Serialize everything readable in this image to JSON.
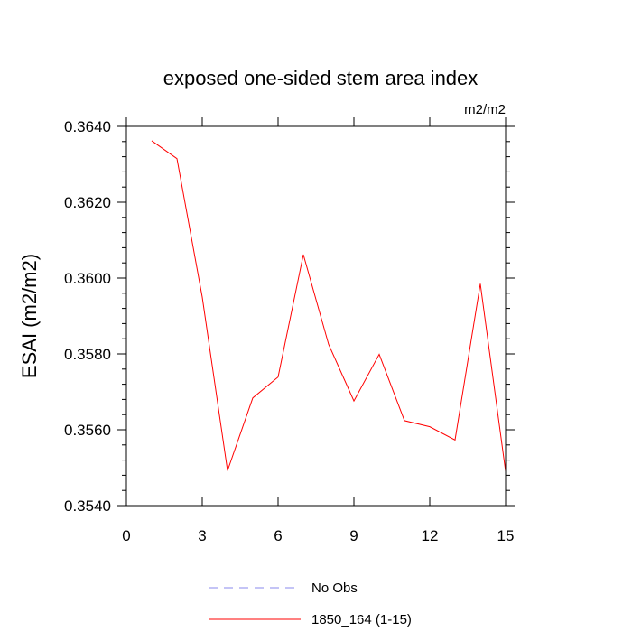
{
  "chart_data": {
    "type": "line",
    "title": "exposed one-sided stem area index",
    "units_label": "m2/m2",
    "ylabel": "ESAI  (m2/m2)",
    "xlabel": "",
    "xlim": [
      0,
      15
    ],
    "ylim": [
      0.354,
      0.364
    ],
    "x_major_ticks": [
      0,
      3,
      6,
      9,
      12,
      15
    ],
    "x_tick_labels": [
      "0",
      "3",
      "6",
      "9",
      "12",
      "15"
    ],
    "y_major_ticks": [
      0.354,
      0.356,
      0.358,
      0.36,
      0.362,
      0.364
    ],
    "y_tick_labels": [
      "0.3540",
      "0.3560",
      "0.3580",
      "0.3600",
      "0.3620",
      "0.3640"
    ],
    "grid": false,
    "legend_position": "bottom",
    "series": [
      {
        "name": "No Obs",
        "color": "#8888ee",
        "dash": "dashed",
        "x": [],
        "y": []
      },
      {
        "name": "1850_164 (1-15)",
        "color": "#ff0000",
        "dash": "solid",
        "x": [
          1,
          2,
          3,
          4,
          5,
          6,
          7,
          8,
          9,
          10,
          11,
          12,
          13,
          14,
          15
        ],
        "y": [
          0.36362,
          0.36315,
          0.3595,
          0.35492,
          0.35684,
          0.35739,
          0.36062,
          0.35825,
          0.35676,
          0.35799,
          0.35624,
          0.35608,
          0.35573,
          0.35985,
          0.3549
        ]
      }
    ]
  }
}
